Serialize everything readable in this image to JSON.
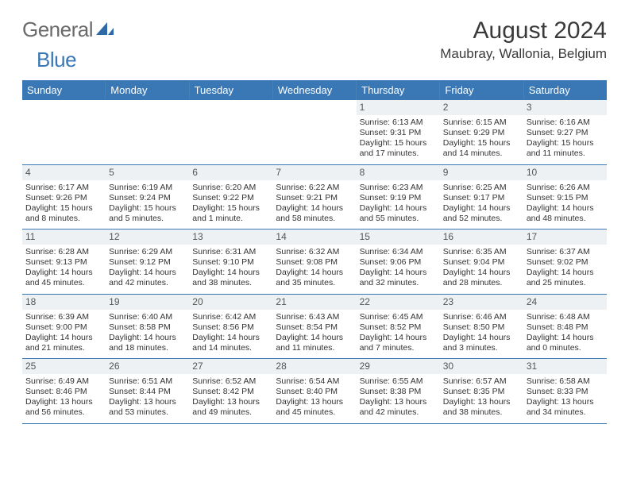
{
  "brand": {
    "part1": "General",
    "part2": "Blue"
  },
  "title": "August 2024",
  "location": "Maubray, Wallonia, Belgium",
  "weekday_header_bg": "#3a78b5",
  "weekdays": [
    "Sunday",
    "Monday",
    "Tuesday",
    "Wednesday",
    "Thursday",
    "Friday",
    "Saturday"
  ],
  "weeks": [
    [
      null,
      null,
      null,
      null,
      {
        "n": "1",
        "sr": "Sunrise: 6:13 AM",
        "ss": "Sunset: 9:31 PM",
        "dl": "Daylight: 15 hours and 17 minutes."
      },
      {
        "n": "2",
        "sr": "Sunrise: 6:15 AM",
        "ss": "Sunset: 9:29 PM",
        "dl": "Daylight: 15 hours and 14 minutes."
      },
      {
        "n": "3",
        "sr": "Sunrise: 6:16 AM",
        "ss": "Sunset: 9:27 PM",
        "dl": "Daylight: 15 hours and 11 minutes."
      }
    ],
    [
      {
        "n": "4",
        "sr": "Sunrise: 6:17 AM",
        "ss": "Sunset: 9:26 PM",
        "dl": "Daylight: 15 hours and 8 minutes."
      },
      {
        "n": "5",
        "sr": "Sunrise: 6:19 AM",
        "ss": "Sunset: 9:24 PM",
        "dl": "Daylight: 15 hours and 5 minutes."
      },
      {
        "n": "6",
        "sr": "Sunrise: 6:20 AM",
        "ss": "Sunset: 9:22 PM",
        "dl": "Daylight: 15 hours and 1 minute."
      },
      {
        "n": "7",
        "sr": "Sunrise: 6:22 AM",
        "ss": "Sunset: 9:21 PM",
        "dl": "Daylight: 14 hours and 58 minutes."
      },
      {
        "n": "8",
        "sr": "Sunrise: 6:23 AM",
        "ss": "Sunset: 9:19 PM",
        "dl": "Daylight: 14 hours and 55 minutes."
      },
      {
        "n": "9",
        "sr": "Sunrise: 6:25 AM",
        "ss": "Sunset: 9:17 PM",
        "dl": "Daylight: 14 hours and 52 minutes."
      },
      {
        "n": "10",
        "sr": "Sunrise: 6:26 AM",
        "ss": "Sunset: 9:15 PM",
        "dl": "Daylight: 14 hours and 48 minutes."
      }
    ],
    [
      {
        "n": "11",
        "sr": "Sunrise: 6:28 AM",
        "ss": "Sunset: 9:13 PM",
        "dl": "Daylight: 14 hours and 45 minutes."
      },
      {
        "n": "12",
        "sr": "Sunrise: 6:29 AM",
        "ss": "Sunset: 9:12 PM",
        "dl": "Daylight: 14 hours and 42 minutes."
      },
      {
        "n": "13",
        "sr": "Sunrise: 6:31 AM",
        "ss": "Sunset: 9:10 PM",
        "dl": "Daylight: 14 hours and 38 minutes."
      },
      {
        "n": "14",
        "sr": "Sunrise: 6:32 AM",
        "ss": "Sunset: 9:08 PM",
        "dl": "Daylight: 14 hours and 35 minutes."
      },
      {
        "n": "15",
        "sr": "Sunrise: 6:34 AM",
        "ss": "Sunset: 9:06 PM",
        "dl": "Daylight: 14 hours and 32 minutes."
      },
      {
        "n": "16",
        "sr": "Sunrise: 6:35 AM",
        "ss": "Sunset: 9:04 PM",
        "dl": "Daylight: 14 hours and 28 minutes."
      },
      {
        "n": "17",
        "sr": "Sunrise: 6:37 AM",
        "ss": "Sunset: 9:02 PM",
        "dl": "Daylight: 14 hours and 25 minutes."
      }
    ],
    [
      {
        "n": "18",
        "sr": "Sunrise: 6:39 AM",
        "ss": "Sunset: 9:00 PM",
        "dl": "Daylight: 14 hours and 21 minutes."
      },
      {
        "n": "19",
        "sr": "Sunrise: 6:40 AM",
        "ss": "Sunset: 8:58 PM",
        "dl": "Daylight: 14 hours and 18 minutes."
      },
      {
        "n": "20",
        "sr": "Sunrise: 6:42 AM",
        "ss": "Sunset: 8:56 PM",
        "dl": "Daylight: 14 hours and 14 minutes."
      },
      {
        "n": "21",
        "sr": "Sunrise: 6:43 AM",
        "ss": "Sunset: 8:54 PM",
        "dl": "Daylight: 14 hours and 11 minutes."
      },
      {
        "n": "22",
        "sr": "Sunrise: 6:45 AM",
        "ss": "Sunset: 8:52 PM",
        "dl": "Daylight: 14 hours and 7 minutes."
      },
      {
        "n": "23",
        "sr": "Sunrise: 6:46 AM",
        "ss": "Sunset: 8:50 PM",
        "dl": "Daylight: 14 hours and 3 minutes."
      },
      {
        "n": "24",
        "sr": "Sunrise: 6:48 AM",
        "ss": "Sunset: 8:48 PM",
        "dl": "Daylight: 14 hours and 0 minutes."
      }
    ],
    [
      {
        "n": "25",
        "sr": "Sunrise: 6:49 AM",
        "ss": "Sunset: 8:46 PM",
        "dl": "Daylight: 13 hours and 56 minutes."
      },
      {
        "n": "26",
        "sr": "Sunrise: 6:51 AM",
        "ss": "Sunset: 8:44 PM",
        "dl": "Daylight: 13 hours and 53 minutes."
      },
      {
        "n": "27",
        "sr": "Sunrise: 6:52 AM",
        "ss": "Sunset: 8:42 PM",
        "dl": "Daylight: 13 hours and 49 minutes."
      },
      {
        "n": "28",
        "sr": "Sunrise: 6:54 AM",
        "ss": "Sunset: 8:40 PM",
        "dl": "Daylight: 13 hours and 45 minutes."
      },
      {
        "n": "29",
        "sr": "Sunrise: 6:55 AM",
        "ss": "Sunset: 8:38 PM",
        "dl": "Daylight: 13 hours and 42 minutes."
      },
      {
        "n": "30",
        "sr": "Sunrise: 6:57 AM",
        "ss": "Sunset: 8:35 PM",
        "dl": "Daylight: 13 hours and 38 minutes."
      },
      {
        "n": "31",
        "sr": "Sunrise: 6:58 AM",
        "ss": "Sunset: 8:33 PM",
        "dl": "Daylight: 13 hours and 34 minutes."
      }
    ]
  ]
}
